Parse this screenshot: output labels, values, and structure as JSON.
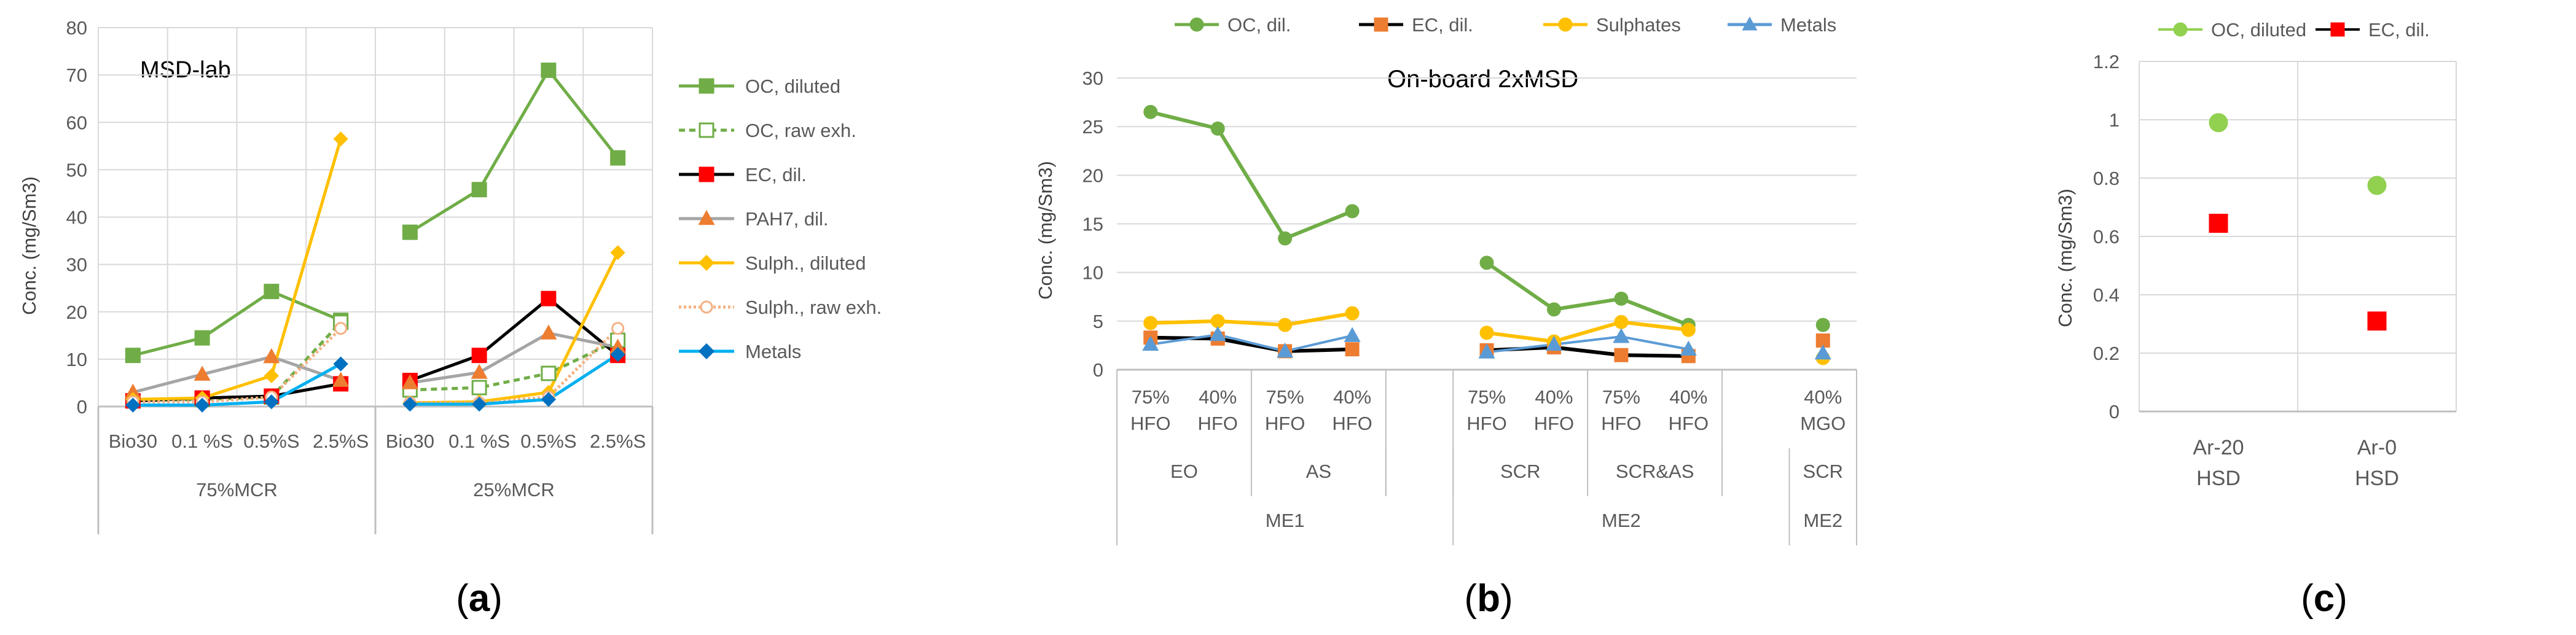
{
  "figure_labels": [
    {
      "prefix": "(",
      "letter": "a",
      "suffix": ")"
    },
    {
      "prefix": "(",
      "letter": "b",
      "suffix": ")"
    },
    {
      "prefix": "(",
      "letter": "c",
      "suffix": ")"
    }
  ],
  "chart_data": [
    {
      "id": "a",
      "type": "line",
      "title": "MSD-lab",
      "ylabel": "Conc. (mg/Sm3)",
      "ylim": [
        0,
        80
      ],
      "yticks": [
        0,
        10,
        20,
        30,
        40,
        50,
        60,
        70,
        80
      ],
      "grid": true,
      "legend_position": "right",
      "categories": [
        "Bio30",
        "0.1 %S",
        "0.5%S",
        "2.5%S",
        "Bio30",
        "0.1 %S",
        "0.5%S",
        "2.5%S"
      ],
      "groups": [
        {
          "label": "75%MCR",
          "start": 0,
          "end": 3
        },
        {
          "label": "25%MCR",
          "start": 4,
          "end": 7
        }
      ],
      "series": [
        {
          "name": "OC, diluted",
          "color": "#70ad47",
          "marker": "square",
          "dash": "",
          "filled": true,
          "values": [
            10.8,
            14.5,
            24.3,
            18.2,
            36.8,
            45.8,
            71,
            52.5
          ]
        },
        {
          "name": "OC, raw exh.",
          "color": "#70ad47",
          "marker": "square",
          "dash": "10,7",
          "filled": false,
          "values": [
            1.2,
            1.5,
            2,
            17.8,
            3.5,
            4,
            7,
            14
          ]
        },
        {
          "name": "EC, dil.",
          "color": "#000000",
          "marker": "square",
          "markerColor": "#ff0000",
          "dash": "",
          "filled": true,
          "values": [
            1.2,
            1.8,
            2.2,
            4.8,
            5.5,
            10.8,
            22.8,
            10.8
          ]
        },
        {
          "name": "PAH7, dil.",
          "color": "#a5a5a5",
          "marker": "triangle",
          "markerColor": "#ed7d31",
          "dash": "",
          "filled": true,
          "values": [
            3,
            6.8,
            10.5,
            5.5,
            5,
            7.2,
            15.5,
            12.5
          ]
        },
        {
          "name": "Sulph., diluted",
          "color": "#ffc000",
          "marker": "diamond",
          "dash": "",
          "filled": true,
          "values": [
            1.5,
            1.8,
            6.5,
            56.5,
            0.8,
            1,
            3,
            32.5
          ]
        },
        {
          "name": "Sulph., raw exh.",
          "color": "#f4b183",
          "marker": "circle",
          "dash": "4,4",
          "filled": false,
          "values": [
            1,
            1,
            2,
            16.5,
            0.8,
            0.8,
            2,
            16.5
          ]
        },
        {
          "name": "Metals",
          "color": "#00b0f0",
          "marker": "diamond",
          "markerColor": "#0070c0",
          "dash": "",
          "filled": true,
          "values": [
            0.3,
            0.3,
            1,
            9,
            0.5,
            0.5,
            1.5,
            11
          ]
        }
      ]
    },
    {
      "id": "b",
      "type": "line",
      "title": "On-board 2xMSD",
      "ylabel": "Conc. (mg/Sm3)",
      "ylim": [
        0,
        30
      ],
      "yticks": [
        0,
        5,
        10,
        15,
        20,
        25,
        30
      ],
      "grid": true,
      "legend_position": "top",
      "categories": [
        [
          "75%",
          "HFO"
        ],
        [
          "40%",
          "HFO"
        ],
        [
          "75%",
          "HFO"
        ],
        [
          "40%",
          "HFO"
        ],
        [
          "",
          ""
        ],
        [
          "75%",
          "HFO"
        ],
        [
          "40%",
          "HFO"
        ],
        [
          "75%",
          "HFO"
        ],
        [
          "40%",
          "HFO"
        ],
        [
          "",
          ""
        ],
        [
          "40%",
          "MGO"
        ]
      ],
      "groups_level2": [
        {
          "label": "EO",
          "start": 0,
          "end": 1
        },
        {
          "label": "AS",
          "start": 2,
          "end": 3
        },
        {
          "label": "SCR",
          "start": 5,
          "end": 6
        },
        {
          "label": "SCR&AS",
          "start": 7,
          "end": 8
        },
        {
          "label": "SCR",
          "start": 10,
          "end": 10
        }
      ],
      "groups_level3": [
        {
          "label": "ME1",
          "start": 0,
          "end": 4
        },
        {
          "label": "ME2",
          "start": 5,
          "end": 9
        },
        {
          "label": "ME2",
          "start": 10,
          "end": 10
        }
      ],
      "series": [
        {
          "name": "OC, dil.",
          "color": "#70ad47",
          "marker": "circle",
          "lineWidth": 6,
          "values": [
            26.5,
            24.8,
            13.5,
            16.3,
            null,
            11,
            6.2,
            7.3,
            4.6,
            null,
            4.6
          ]
        },
        {
          "name": "EC, dil.",
          "color": "#000000",
          "marker": "square",
          "markerColor": "#ed7d31",
          "lineWidth": 6,
          "values": [
            3.3,
            3.2,
            1.9,
            2.1,
            null,
            2,
            2.3,
            1.5,
            1.4,
            null,
            3
          ]
        },
        {
          "name": "Sulphates",
          "color": "#ffc000",
          "marker": "circle",
          "lineWidth": 6,
          "values": [
            4.8,
            5,
            4.6,
            5.8,
            null,
            3.8,
            2.9,
            4.9,
            4.1,
            null,
            1.2
          ]
        },
        {
          "name": "Metals",
          "color": "#5b9bd5",
          "marker": "triangle",
          "lineWidth": 4,
          "values": [
            2.6,
            3.6,
            1.9,
            3.5,
            null,
            1.8,
            2.6,
            3.4,
            2.1,
            null,
            1.7
          ]
        }
      ]
    },
    {
      "id": "c",
      "type": "scatter",
      "title": "",
      "ylabel": "Conc. (mg/Sm3)",
      "ylim": [
        0,
        1.2
      ],
      "yticks": [
        "0",
        "0.2",
        "0.4",
        "0.6",
        "0.8",
        "1",
        "1.2"
      ],
      "grid": true,
      "legend_position": "top",
      "categories": [
        [
          "Ar-20",
          "HSD"
        ],
        [
          "Ar-0",
          "HSD"
        ]
      ],
      "series": [
        {
          "name": "OC, diluted",
          "color": "#92d050",
          "marker": "circle",
          "values": [
            0.99,
            0.775
          ]
        },
        {
          "name": "EC, dil.",
          "color": "#ff0000",
          "marker": "square",
          "values": [
            0.645,
            0.31
          ]
        }
      ]
    }
  ]
}
